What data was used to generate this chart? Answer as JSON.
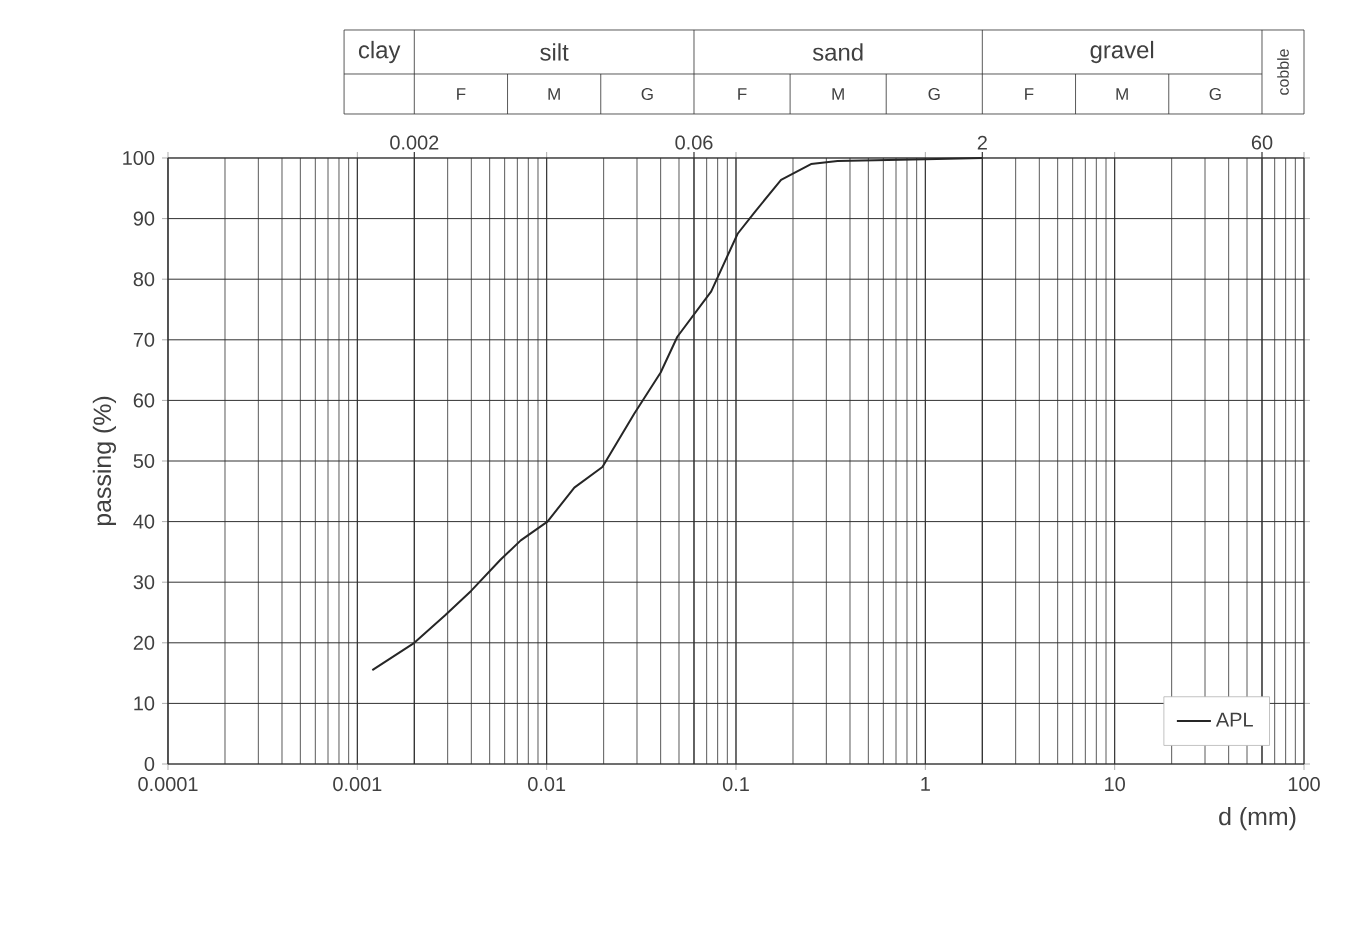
{
  "chart_data": {
    "type": "line",
    "xlabel": "d (mm)",
    "ylabel": "passing (%)",
    "log": "x",
    "xlim": [
      0.0001,
      100
    ],
    "xticks": [
      0.0001,
      0.001,
      0.01,
      0.1,
      1,
      10,
      100
    ],
    "ylim": [
      0,
      100
    ],
    "yticks": [
      0,
      10,
      20,
      30,
      40,
      50,
      60,
      70,
      80,
      90,
      100
    ],
    "grid": true,
    "legend": "bottom right",
    "annotations": [
      "clay",
      "silt",
      "sand",
      "gravel",
      "cobble",
      "F",
      "M",
      "G",
      "F",
      "M",
      "G",
      "F",
      "M",
      "G"
    ],
    "ref_lines": [
      {
        "axis": "x",
        "value": 0.002,
        "label": "0.002"
      },
      {
        "axis": "x",
        "value": 0.06,
        "label": "0.06"
      },
      {
        "axis": "x",
        "value": 2,
        "label": "2"
      },
      {
        "axis": "x",
        "value": 60,
        "label": "60"
      }
    ],
    "series": [
      {
        "name": "APL",
        "color": "#262626",
        "x": [
          0.0012,
          0.002,
          0.0029,
          0.004,
          0.0057,
          0.0073,
          0.0101,
          0.014,
          0.0197,
          0.029,
          0.04,
          0.049,
          0.074,
          0.102,
          0.125,
          0.173,
          0.249,
          0.344,
          1,
          2
        ],
        "values": [
          15.5,
          20,
          24.5,
          28.6,
          33.7,
          36.9,
          40,
          45.6,
          49,
          57.8,
          64.6,
          70.5,
          78,
          87.5,
          91,
          96.4,
          99,
          99.5,
          99.8,
          100
        ]
      }
    ]
  }
}
